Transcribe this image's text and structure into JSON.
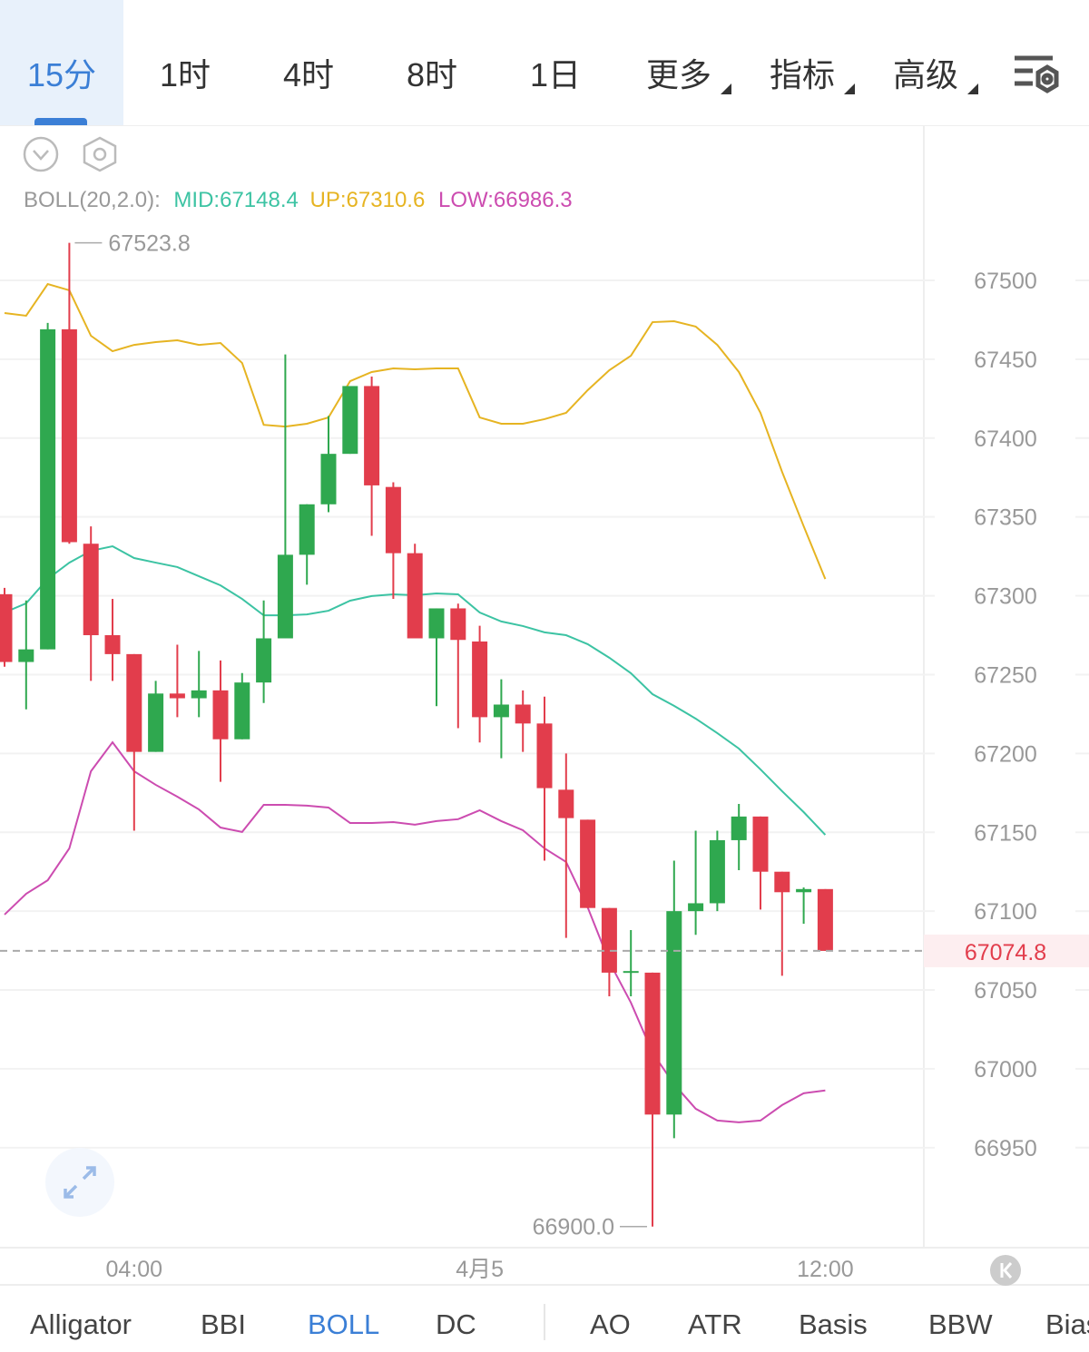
{
  "tabs": [
    "15分",
    "1时",
    "4时",
    "8时",
    "1日",
    "更多",
    "指标",
    "高级"
  ],
  "indicator_tabs": [
    "Alligator",
    "BBI",
    "BOLL",
    "DC",
    "AO",
    "ATR",
    "Basis",
    "BBW",
    "Bias"
  ],
  "chart_data": {
    "type": "candlestick",
    "indicator_label": "BOLL(20,2.0):",
    "categories": [
      null,
      null,
      null,
      null,
      null,
      null,
      "04:00",
      null,
      null,
      null,
      null,
      null,
      null,
      null,
      null,
      null,
      null,
      null,
      null,
      null,
      null,
      null,
      "4月5",
      null,
      null,
      null,
      null,
      null,
      null,
      null,
      null,
      null,
      null,
      null,
      null,
      null,
      null,
      null,
      "12:00"
    ],
    "open": [
      67301,
      67258,
      67266,
      67469,
      67333,
      67275,
      67263,
      67201,
      67238,
      67235,
      67240,
      67209,
      67245,
      67273,
      67326,
      67358,
      67390,
      67433,
      67369,
      67327,
      67273,
      67292,
      67271,
      67223,
      67231,
      67219,
      67177,
      67158,
      67102,
      67061,
      67061,
      66971,
      67100,
      67105,
      67145,
      67160,
      67125,
      67112,
      67114
    ],
    "high": [
      67305,
      67297,
      67473,
      67523.8,
      67344,
      67298,
      67263,
      67246,
      67269,
      67265,
      67259,
      67251,
      67297,
      67453,
      67358,
      67414,
      67433,
      67439,
      67372,
      67333,
      67292,
      67295,
      67281,
      67247,
      67240,
      67236,
      67200,
      67158,
      67102,
      67088,
      67061,
      67132,
      67151,
      67151,
      67168,
      67160,
      67125,
      67115,
      67114
    ],
    "low": [
      67255,
      67228,
      67266,
      67333,
      67246,
      67246,
      67151,
      67201,
      67223,
      67223,
      67182,
      67209,
      67232,
      67273,
      67307,
      67353,
      67390,
      67338,
      67298,
      67273,
      67230,
      67216,
      67207,
      67197,
      67201,
      67132,
      67083,
      67102,
      67046,
      67046,
      66900,
      66956,
      67085,
      67100,
      67126,
      67101,
      67059,
      67092,
      67074.8
    ],
    "close": [
      67258,
      67266,
      67469,
      67334,
      67275,
      67263,
      67201,
      67238,
      67235,
      67240,
      67209,
      67245,
      67273,
      67326,
      67358,
      67390,
      67433,
      67370,
      67327,
      67273,
      67292,
      67272,
      67223,
      67231,
      67219,
      67178,
      67159,
      67102,
      67061,
      67062,
      66971,
      67100,
      67105,
      67145,
      67160,
      67125,
      67112,
      67114,
      67074.8
    ],
    "up_color": "#2fa84f",
    "down_color": "#e23d4c",
    "series": [
      {
        "name": "MID:",
        "color": "#3cc3a3",
        "legend_value": 67148.4,
        "values": [
          67289.4,
          67295.2,
          67310.7,
          67321.0,
          67328.5,
          67331.4,
          67323.9,
          67321.0,
          67318.2,
          67312.4,
          67306.6,
          67298.0,
          67287.6,
          67287.6,
          67288.2,
          67290.5,
          67296.9,
          67299.8,
          67300.9,
          67300.3,
          67301.5,
          67300.9,
          67289.4,
          67283.7,
          67280.8,
          67276.8,
          67275.0,
          67269.3,
          67260.7,
          67250.9,
          67237.6,
          67230.2,
          67222.1,
          67212.9,
          67203.1,
          67189.9,
          67176.1,
          67162.8,
          67148.4
        ]
      },
      {
        "name": "UP:",
        "color": "#e6b422",
        "legend_value": 67310.6,
        "values": [
          67479.3,
          67477.6,
          67497.7,
          67493.7,
          67464.9,
          67455.1,
          67459.1,
          67460.9,
          67462.0,
          67459.1,
          67460.3,
          67447.6,
          67408.4,
          67407.3,
          67409.1,
          67413.1,
          67436.1,
          67441.9,
          67444.2,
          67443.6,
          67444.2,
          67444.2,
          67413.1,
          67409.1,
          67409.1,
          67412.0,
          67416.0,
          67430.4,
          67443.0,
          67452.2,
          67473.5,
          67474.1,
          67470.7,
          67459.1,
          67441.9,
          67416.0,
          67378.6,
          67344.1,
          67310.6
        ]
      },
      {
        "name": "LOW:",
        "color": "#cc4cb0",
        "legend_value": 66986.3,
        "values": [
          67097.8,
          67111.0,
          67119.6,
          67139.8,
          67188.7,
          67207.1,
          67188.7,
          67180.1,
          67172.6,
          67164.5,
          67153.0,
          67150.2,
          67167.4,
          67167.4,
          67166.9,
          67165.7,
          67155.9,
          67155.9,
          67156.5,
          67154.8,
          67157.1,
          67158.3,
          67164.0,
          67157.1,
          67151.3,
          67139.8,
          67131.2,
          67102.4,
          67067.9,
          67042.0,
          67010.3,
          66990.2,
          66974.7,
          66967.2,
          66966.1,
          66967.2,
          66977.0,
          66984.5,
          66986.3
        ]
      }
    ],
    "ylim": [
      66886.6,
      67598.4
    ],
    "yticks": [
      66950,
      67000,
      67050,
      67100,
      67150,
      67200,
      67250,
      67300,
      67350,
      67400,
      67450,
      67500
    ],
    "grid": true,
    "last_price": 67074.8,
    "high_marker": 67523.8,
    "low_marker": {
      "value": 66900,
      "label": "66900.0"
    }
  }
}
